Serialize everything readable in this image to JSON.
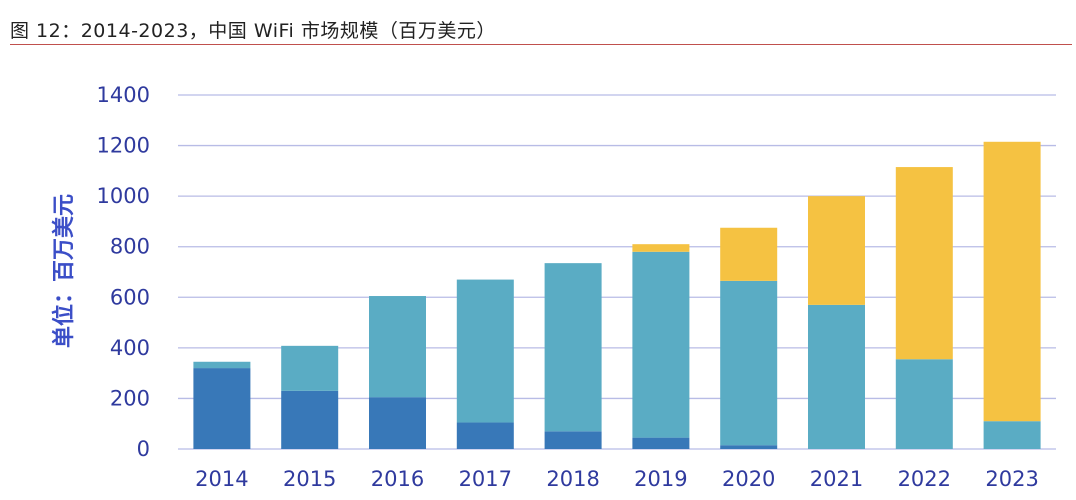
{
  "figure": {
    "title": "图 12：2014-2023，中国 WiFi 市场规模（百万美元）"
  },
  "colors": {
    "series1": "#3878b8",
    "series2": "#5aacc4",
    "series3": "#f5c242",
    "grid": "#b8bce6",
    "tick": "#2f3a9e",
    "rule": "#c0504d"
  },
  "chart_data": {
    "type": "bar",
    "stacked": true,
    "title": "2014-2023，中国 WiFi 市场规模（百万美元）",
    "xlabel": "",
    "ylabel": "单位：百万美元",
    "ylim": [
      0,
      1400
    ],
    "yticks": [
      0,
      200,
      400,
      600,
      800,
      1000,
      1200,
      1400
    ],
    "grid": true,
    "legend": "none",
    "categories": [
      "2014",
      "2015",
      "2016",
      "2017",
      "2018",
      "2019",
      "2020",
      "2021",
      "2022",
      "2023"
    ],
    "series": [
      {
        "name": "series-1",
        "values": [
          320,
          230,
          205,
          105,
          70,
          45,
          15,
          0,
          0,
          0
        ]
      },
      {
        "name": "series-2",
        "values": [
          25,
          178,
          400,
          565,
          665,
          735,
          650,
          570,
          355,
          110
        ]
      },
      {
        "name": "series-3",
        "values": [
          0,
          0,
          0,
          0,
          0,
          30,
          210,
          430,
          760,
          1105
        ]
      }
    ]
  }
}
